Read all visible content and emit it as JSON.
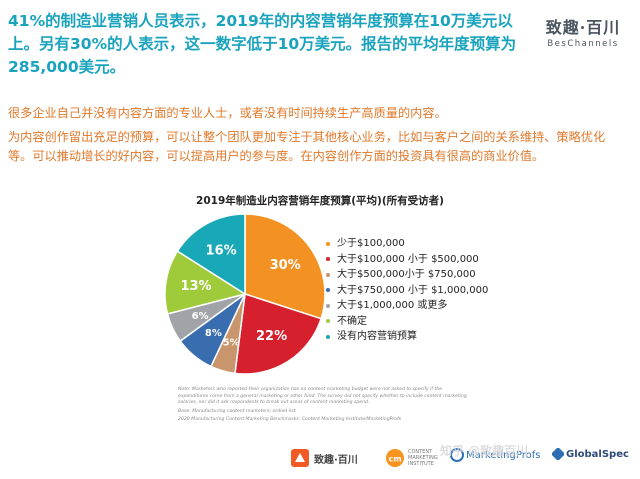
{
  "header": {
    "headline": "41%的制造业营销人员表示，2019年的内容营销年度预算在10万美元以上。另有30%的人表示，这一数字低于10万美元。报告的平均年度预算为285,000美元。",
    "logo_cn": "致趣·百川",
    "logo_en": "BesChannels"
  },
  "body": {
    "p1": "很多企业自己并没有内容方面的专业人士，或者没有时间持续生产高质量的内容。",
    "p2": "为内容创作留出充足的预算，可以让整个团队更加专注于其他核心业务，比如与客户之间的关系维持、策略优化等。可以推动增长的好内容，可以提高用户的参与度。在内容创作方面的投资具有很高的商业价值。"
  },
  "chart_data": {
    "type": "pie",
    "title": "2019年制造业内容营销年度预算(平均)(所有受访者)",
    "categories": [
      "少于$100,000",
      "大于$100,000 小于 $500,000",
      "大于$500,000小于 $750,000",
      "大于$750,000 小于 $1,000,000",
      "大于$1,000,000 或更多",
      "不确定",
      "没有内容营销预算"
    ],
    "values": [
      30,
      22,
      5,
      8,
      6,
      13,
      16
    ],
    "labels": [
      "30%",
      "22%",
      "5%",
      "8%",
      "6%",
      "13%",
      "16%"
    ],
    "colors": [
      "#f39222",
      "#d6202e",
      "#c9956b",
      "#3a6cb0",
      "#a0a4a8",
      "#9fcb3a",
      "#19a8b8"
    ],
    "legend_position": "right"
  },
  "footnote": {
    "note": "Note: Marketers who reported their organization has no content marketing budget were not asked to specify if the expenditures come from a general marketing or other fund. The survey did not specify whether to include content marketing salaries, nor did it ask respondents to break out areas of content marketing spend.",
    "base": "Base: Manufacturing content marketers; ordied list.",
    "source": "2020 Manufacturing Content Marketing Benchmarks: Content Marketing Institute/MarketingProfs"
  },
  "footer": {
    "logo1": "致趣·百川",
    "logo2_small": "CONTENT MARKETING INSTITUTE",
    "logo3": "MarketingProfs",
    "logo4": "GlobalSpec",
    "watermark": "知乎 @致趣百川"
  }
}
